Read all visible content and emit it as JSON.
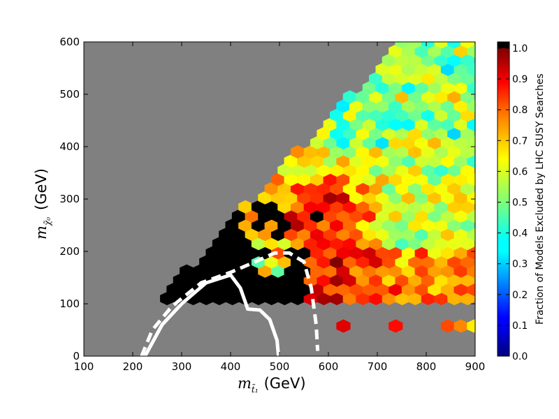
{
  "chart_data": {
    "type": "heatmap",
    "subtype": "hexbin",
    "xlabel": "(GeV)",
    "xlabel_symbol": "m",
    "xlabel_subscript": "t̃₁",
    "ylabel": "(GeV)",
    "ylabel_symbol": "m",
    "ylabel_subscript": "χ̃₀",
    "xlim": [
      100,
      900
    ],
    "ylim": [
      0,
      600
    ],
    "xticks": [
      "100",
      "200",
      "300",
      "400",
      "500",
      "600",
      "700",
      "800",
      "900"
    ],
    "yticks": [
      "0",
      "100",
      "200",
      "300",
      "400",
      "500",
      "600"
    ],
    "background_color": "#808080",
    "colorbar": {
      "label": "Fraction of Models Excluded by LHC SUSY Searches",
      "range": [
        0.0,
        1.0
      ],
      "ticks": [
        "0.0",
        "0.1",
        "0.2",
        "0.3",
        "0.4",
        "0.5",
        "0.6",
        "0.7",
        "0.8",
        "0.9",
        "1.0"
      ],
      "colormap": "jet",
      "over_color": "#000000"
    },
    "hexbin_grid": {
      "x_step": 26.7,
      "y_step": 17.5
    },
    "excluded_region_color": "#000000",
    "value_zones": [
      {
        "description": "diagonal band near kinematic limit",
        "typical_value": 0.55
      },
      {
        "description": "core around 550-650 GeV stop, 200-350 GeV neutralino",
        "typical_value": 0.9
      },
      {
        "description": "high stop mass, high neutralino mass",
        "typical_value": 0.5
      },
      {
        "description": "low neutralino mass, stop 600-900 GeV",
        "typical_value": 0.75
      }
    ],
    "curves": [
      {
        "style": "solid",
        "color": "#ffffff",
        "points": [
          [
            225,
            0
          ],
          [
            260,
            60
          ],
          [
            300,
            100
          ],
          [
            350,
            140
          ],
          [
            400,
            155
          ],
          [
            420,
            130
          ],
          [
            435,
            90
          ],
          [
            460,
            88
          ],
          [
            480,
            70
          ],
          [
            495,
            30
          ],
          [
            498,
            0
          ]
        ]
      },
      {
        "style": "dashed",
        "color": "#ffffff",
        "points": [
          [
            218,
            0
          ],
          [
            240,
            50
          ],
          [
            280,
            95
          ],
          [
            340,
            140
          ],
          [
            400,
            160
          ],
          [
            450,
            180
          ],
          [
            490,
            197
          ],
          [
            520,
            197
          ],
          [
            550,
            180
          ],
          [
            565,
            130
          ],
          [
            575,
            60
          ],
          [
            578,
            10
          ]
        ]
      }
    ]
  }
}
